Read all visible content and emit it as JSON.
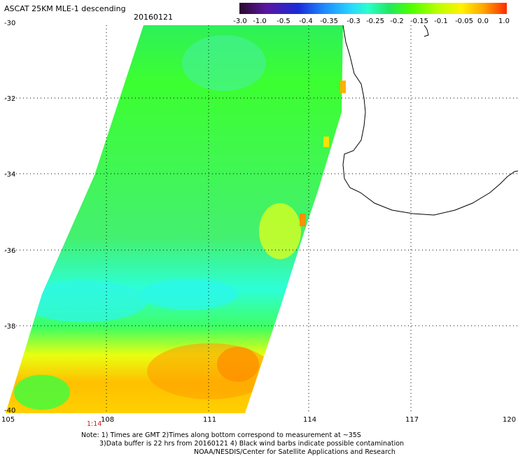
{
  "header": {
    "title": "ASCAT 25KM MLE-1 descending",
    "date": "20160121"
  },
  "colorbar": {
    "labels": [
      "-3.0",
      "-1.0",
      "-0.5",
      "-0.4",
      "-0.35",
      "-0.3",
      "-0.25",
      "-0.2",
      "-0.15",
      "-0.1",
      "-0.05",
      "0.0",
      "1.0"
    ],
    "colors": [
      "#2a0a2e",
      "#5a16a0",
      "#1a2ad8",
      "#1e8cff",
      "#28d8ff",
      "#28ffcc",
      "#20e860",
      "#4cff00",
      "#b8ff00",
      "#fff200",
      "#ffa800",
      "#ff2a00"
    ]
  },
  "axes": {
    "lat_labels": [
      "-30",
      "-32",
      "-34",
      "-36",
      "-38",
      "-40"
    ],
    "lon_labels": [
      "105",
      "108",
      "111",
      "114",
      "117",
      "120"
    ]
  },
  "time_label": "1:14",
  "notes": {
    "line1": "Note: 1) Times are GMT 2)Times along bottom correspond to measurement at ~35S",
    "line2": "3)Data buffer is 22 hrs from 20160121 4) Black wind barbs indicate possible contamination",
    "line3": "NOAA/NESDIS/Center for Satellite Applications and Research"
  }
}
